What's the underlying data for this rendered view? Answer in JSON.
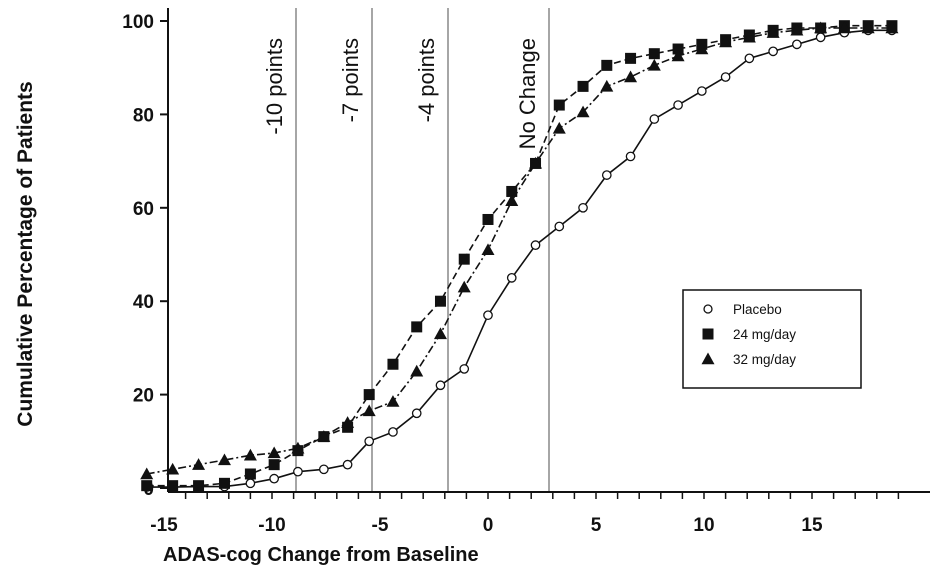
{
  "chart_data": {
    "type": "line",
    "xlabel": "ADAS-cog Change from Baseline",
    "ylabel": "Cumulative Percentage of Patients",
    "xlim": [
      -16,
      19
    ],
    "ylim": [
      0,
      100
    ],
    "x_ticks": [
      -15,
      -10,
      -5,
      0,
      5,
      10,
      15
    ],
    "y_ticks": [
      0,
      20,
      40,
      60,
      80,
      100
    ],
    "grid": false,
    "legend_position": "lower-right",
    "reference_lines": [
      {
        "label": "-10 points",
        "x": -10
      },
      {
        "label": "-7 points",
        "x": -7
      },
      {
        "label": "-4 points",
        "x": -4
      },
      {
        "label": "No Change",
        "x": 0
      }
    ],
    "series": [
      {
        "name": "Placebo",
        "marker": "open-circle",
        "line_style": "solid",
        "points": [
          [
            -15.8,
            0.2
          ],
          [
            -14.6,
            0.2
          ],
          [
            -13.4,
            0.3
          ],
          [
            -12.2,
            0.3
          ],
          [
            -11.0,
            1.0
          ],
          [
            -9.9,
            2.0
          ],
          [
            -8.8,
            3.5
          ],
          [
            -7.6,
            4.0
          ],
          [
            -6.5,
            5.0
          ],
          [
            -5.5,
            10.0
          ],
          [
            -4.4,
            12.0
          ],
          [
            -3.3,
            16.0
          ],
          [
            -2.2,
            22.0
          ],
          [
            -1.1,
            25.5
          ],
          [
            0.0,
            37.0
          ],
          [
            1.1,
            45.0
          ],
          [
            2.2,
            52.0
          ],
          [
            3.3,
            56.0
          ],
          [
            4.4,
            60.0
          ],
          [
            5.5,
            67.0
          ],
          [
            6.6,
            71.0
          ],
          [
            7.7,
            79.0
          ],
          [
            8.8,
            82.0
          ],
          [
            9.9,
            85.0
          ],
          [
            11.0,
            88.0
          ],
          [
            12.1,
            92.0
          ],
          [
            13.2,
            93.5
          ],
          [
            14.3,
            95.0
          ],
          [
            15.4,
            96.5
          ],
          [
            16.5,
            97.5
          ],
          [
            17.6,
            98.0
          ],
          [
            18.7,
            98.0
          ]
        ]
      },
      {
        "name": "24 mg/day",
        "marker": "filled-square",
        "line_style": "dashed",
        "points": [
          [
            -15.8,
            0.5
          ],
          [
            -14.6,
            0.5
          ],
          [
            -13.4,
            0.5
          ],
          [
            -12.2,
            1.0
          ],
          [
            -11.0,
            3.0
          ],
          [
            -9.9,
            5.0
          ],
          [
            -8.8,
            8.0
          ],
          [
            -7.6,
            11.0
          ],
          [
            -6.5,
            13.0
          ],
          [
            -5.5,
            20.0
          ],
          [
            -4.4,
            26.5
          ],
          [
            -3.3,
            34.5
          ],
          [
            -2.2,
            40.0
          ],
          [
            -1.1,
            49.0
          ],
          [
            0.0,
            57.5
          ],
          [
            1.1,
            63.5
          ],
          [
            2.2,
            69.5
          ],
          [
            3.3,
            82.0
          ],
          [
            4.4,
            86.0
          ],
          [
            5.5,
            90.5
          ],
          [
            6.6,
            92.0
          ],
          [
            7.7,
            93.0
          ],
          [
            8.8,
            94.0
          ],
          [
            9.9,
            95.0
          ],
          [
            11.0,
            96.0
          ],
          [
            12.1,
            97.0
          ],
          [
            13.2,
            98.0
          ],
          [
            14.3,
            98.5
          ],
          [
            15.4,
            98.5
          ],
          [
            16.5,
            99.0
          ],
          [
            17.6,
            99.0
          ],
          [
            18.7,
            99.0
          ]
        ]
      },
      {
        "name": "32 mg/day",
        "marker": "filled-triangle",
        "line_style": "dash-dot",
        "points": [
          [
            -15.8,
            3.0
          ],
          [
            -14.6,
            4.0
          ],
          [
            -13.4,
            5.0
          ],
          [
            -12.2,
            6.0
          ],
          [
            -11.0,
            7.0
          ],
          [
            -9.9,
            7.5
          ],
          [
            -8.8,
            8.5
          ],
          [
            -7.6,
            11.0
          ],
          [
            -6.5,
            14.0
          ],
          [
            -5.5,
            16.5
          ],
          [
            -4.4,
            18.5
          ],
          [
            -3.3,
            25.0
          ],
          [
            -2.2,
            33.0
          ],
          [
            -1.1,
            43.0
          ],
          [
            0.0,
            51.0
          ],
          [
            1.1,
            61.5
          ],
          [
            2.2,
            69.5
          ],
          [
            3.3,
            77.0
          ],
          [
            4.4,
            80.5
          ],
          [
            5.5,
            86.0
          ],
          [
            6.6,
            88.0
          ],
          [
            7.7,
            90.5
          ],
          [
            8.8,
            92.5
          ],
          [
            9.9,
            94.0
          ],
          [
            11.0,
            95.5
          ],
          [
            12.1,
            96.5
          ],
          [
            13.2,
            97.5
          ],
          [
            14.3,
            98.0
          ],
          [
            15.4,
            98.5
          ],
          [
            16.5,
            98.5
          ],
          [
            17.6,
            98.5
          ],
          [
            18.7,
            98.5
          ]
        ]
      }
    ]
  }
}
